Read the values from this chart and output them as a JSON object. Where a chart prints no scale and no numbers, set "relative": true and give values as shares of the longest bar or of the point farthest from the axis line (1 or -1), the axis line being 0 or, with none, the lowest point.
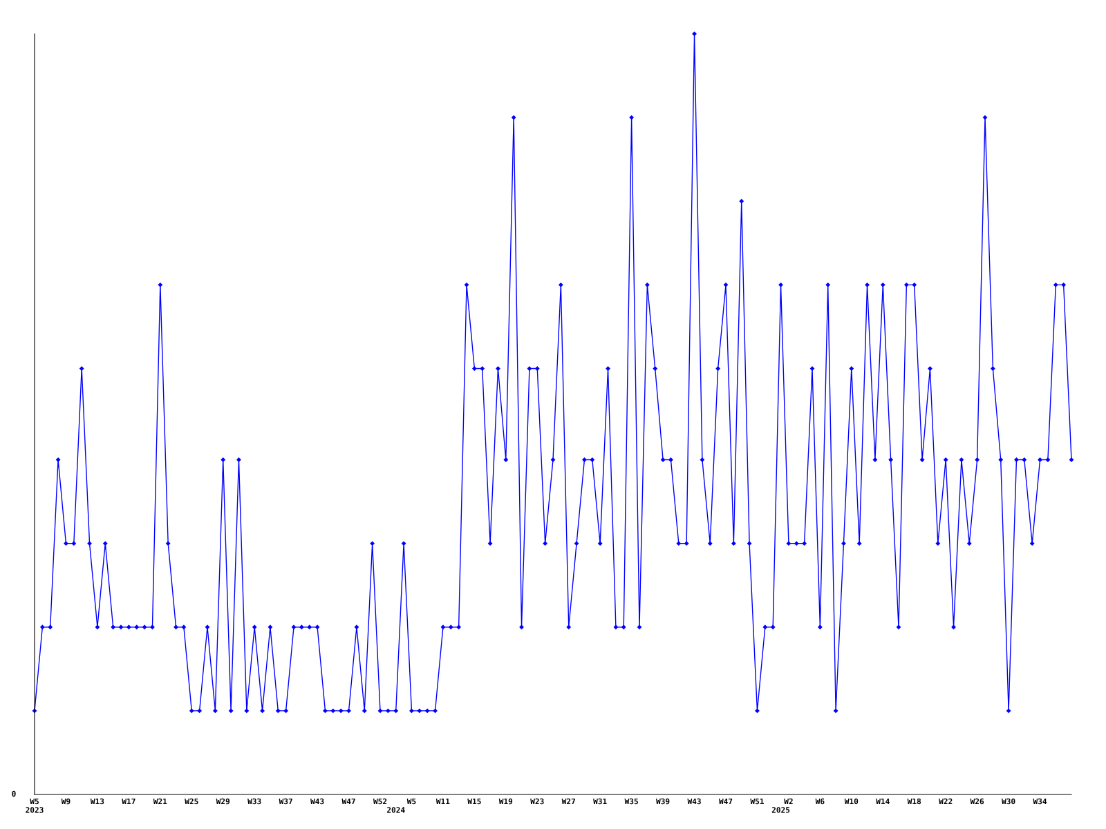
{
  "chart_data": {
    "type": "line",
    "relative": true,
    "color": "#0000ff",
    "marker": "diamond",
    "line_style": "solid",
    "grid": false,
    "legend": false,
    "annotations": [
      "0"
    ],
    "categories": [
      "W5\n2023",
      null,
      null,
      null,
      "W9",
      null,
      null,
      null,
      "W13",
      null,
      null,
      null,
      "W17",
      null,
      null,
      null,
      "W21",
      null,
      null,
      null,
      "W25",
      null,
      null,
      null,
      "W29",
      null,
      null,
      null,
      "W33",
      null,
      null,
      null,
      "W37",
      null,
      null,
      null,
      "W43",
      null,
      null,
      null,
      "W47",
      null,
      null,
      null,
      "W52",
      null,
      "\n2024",
      null,
      "W5",
      null,
      null,
      null,
      "W11",
      null,
      null,
      null,
      "W15",
      null,
      null,
      null,
      "W19",
      null,
      null,
      null,
      "W23",
      null,
      null,
      null,
      "W27",
      null,
      null,
      null,
      "W31",
      null,
      null,
      null,
      "W35",
      null,
      null,
      null,
      "W39",
      null,
      null,
      null,
      "W43",
      null,
      null,
      null,
      "W47",
      null,
      null,
      null,
      "W51",
      null,
      null,
      "\n2025",
      "W2",
      null,
      null,
      null,
      "W6",
      null,
      null,
      null,
      "W10",
      null,
      null,
      null,
      "W14",
      null,
      null,
      null,
      "W18",
      null,
      null,
      null,
      "W22",
      null,
      null,
      null,
      "W26",
      null,
      null,
      null,
      "W30",
      null,
      null,
      null,
      "W34",
      null,
      null,
      null,
      null
    ],
    "values": [
      0.11,
      0.22,
      0.22,
      0.44,
      0.33,
      0.33,
      0.56,
      0.33,
      0.22,
      0.33,
      0.22,
      0.22,
      0.22,
      0.22,
      0.22,
      0.22,
      0.67,
      0.33,
      0.22,
      0.22,
      0.11,
      0.11,
      0.22,
      0.11,
      0.44,
      0.11,
      0.44,
      0.11,
      0.22,
      0.11,
      0.22,
      0.11,
      0.11,
      0.22,
      0.22,
      0.22,
      0.22,
      0.11,
      0.11,
      0.11,
      0.11,
      0.22,
      0.11,
      0.33,
      0.11,
      0.11,
      0.11,
      0.33,
      0.11,
      0.11,
      0.11,
      0.11,
      0.22,
      0.22,
      0.22,
      0.67,
      0.56,
      0.56,
      0.33,
      0.56,
      0.44,
      0.89,
      0.22,
      0.56,
      0.56,
      0.33,
      0.44,
      0.67,
      0.22,
      0.33,
      0.44,
      0.44,
      0.33,
      0.56,
      0.22,
      0.22,
      0.89,
      0.22,
      0.67,
      0.56,
      0.44,
      0.44,
      0.33,
      0.33,
      1,
      0.44,
      0.33,
      0.56,
      0.67,
      0.33,
      0.78,
      0.33,
      0.11,
      0.22,
      0.22,
      0.67,
      0.33,
      0.33,
      0.33,
      0.56,
      0.22,
      0.67,
      0.11,
      0.33,
      0.56,
      0.33,
      0.67,
      0.44,
      0.67,
      0.44,
      0.22,
      0.67,
      0.67,
      0.44,
      0.56,
      0.33,
      0.44,
      0.22,
      0.44,
      0.33,
      0.44,
      0.89,
      0.56,
      0.44,
      0.11,
      0.44,
      0.44,
      0.33,
      0.44,
      0.44,
      0.67,
      0.67,
      0.44
    ]
  }
}
